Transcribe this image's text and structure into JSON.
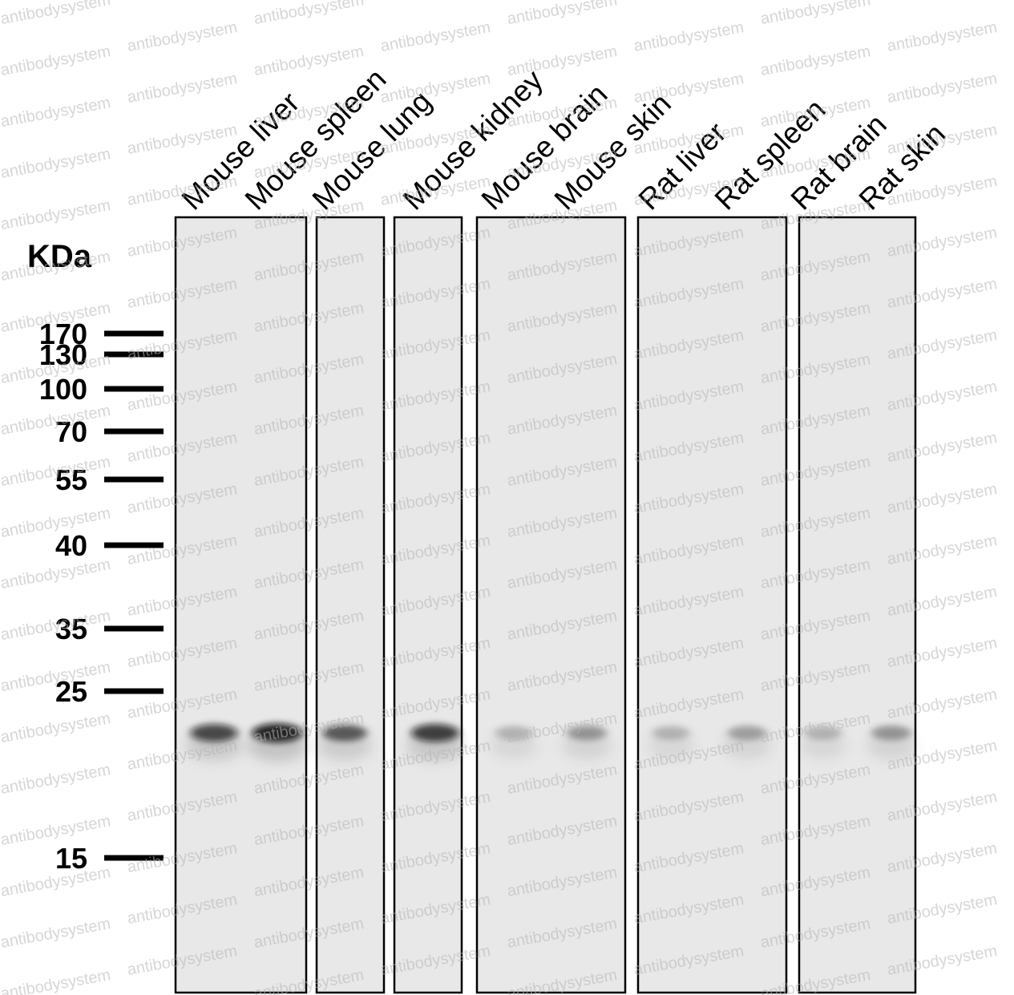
{
  "unit_label": "KDa",
  "watermark": "antibodysystem",
  "lanes": [
    {
      "label": "Mouse liver",
      "band_kda": 22,
      "band_intensity": 0.75
    },
    {
      "label": "Mouse spleen",
      "band_kda": 22,
      "band_intensity": 0.95
    },
    {
      "label": "Mouse lung",
      "band_kda": 22,
      "band_intensity": 0.6
    },
    {
      "label": "Mouse kidney",
      "band_kda": 22,
      "band_intensity": 0.8
    },
    {
      "label": "Mouse brain",
      "band_kda": 22,
      "band_intensity": 0.15
    },
    {
      "label": "Mouse skin",
      "band_kda": 22,
      "band_intensity": 0.3
    },
    {
      "label": "Rat liver",
      "band_kda": 22,
      "band_intensity": 0.15
    },
    {
      "label": "Rat spleen",
      "band_kda": 22,
      "band_intensity": 0.25
    },
    {
      "label": "Rat brain",
      "band_kda": 22,
      "band_intensity": 0.15
    },
    {
      "label": "Rat skin",
      "band_kda": 22,
      "band_intensity": 0.3
    }
  ],
  "panels": [
    [
      0,
      1
    ],
    [
      2
    ],
    [
      3
    ],
    [
      4,
      5
    ],
    [
      6,
      7
    ],
    [
      8,
      9
    ]
  ],
  "markers": [
    {
      "label": "170",
      "kda": 170
    },
    {
      "label": "130",
      "kda": 130
    },
    {
      "label": "100",
      "kda": 100
    },
    {
      "label": "70",
      "kda": 70
    },
    {
      "label": "55",
      "kda": 55
    },
    {
      "label": "40",
      "kda": 40
    },
    {
      "label": "35",
      "kda": 35
    },
    {
      "label": "25",
      "kda": 25
    },
    {
      "label": "15",
      "kda": 15
    }
  ],
  "colors": {
    "membrane": "#e8e8e8",
    "band": "#0a0a0a",
    "border": "#000000"
  }
}
